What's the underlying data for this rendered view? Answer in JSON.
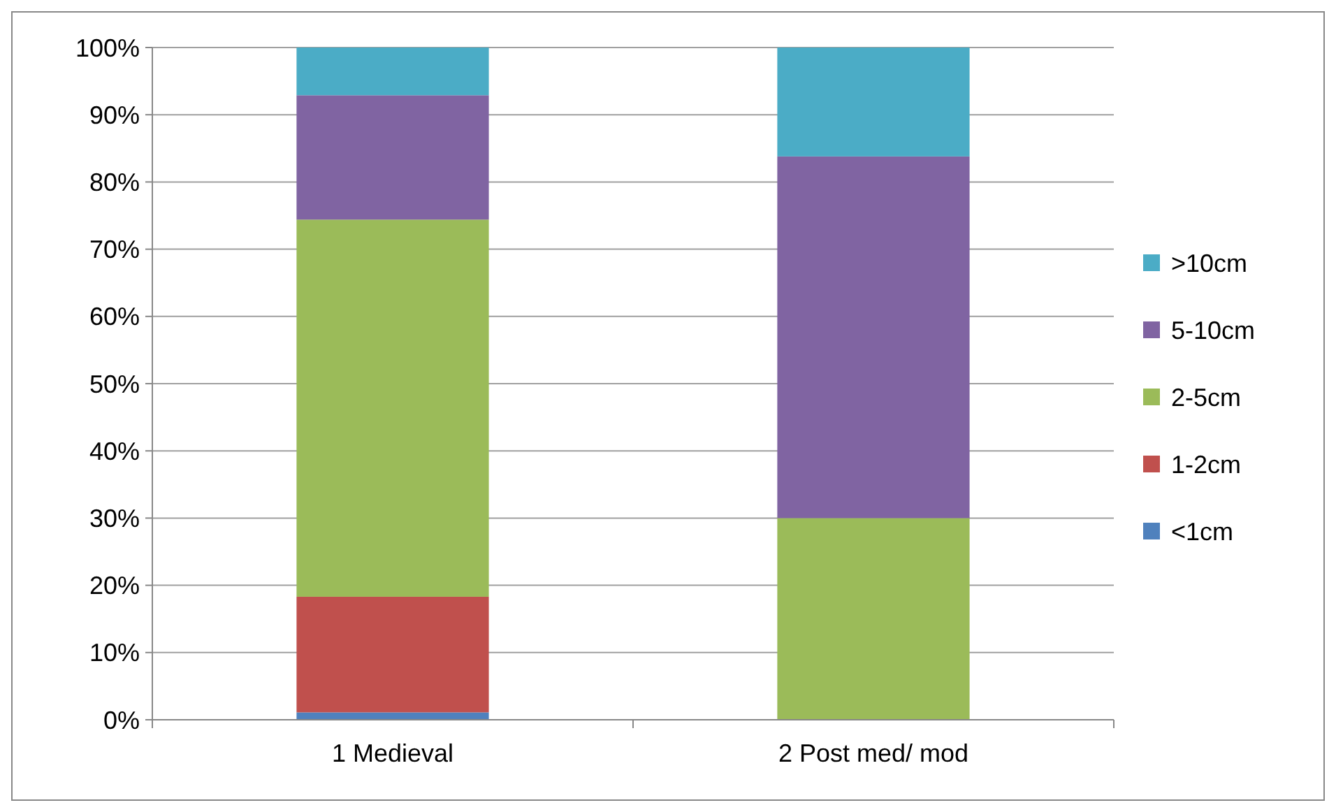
{
  "chart_data": {
    "type": "bar",
    "stacked": true,
    "categories": [
      "1 Medieval",
      "2 Post med/ mod"
    ],
    "series": [
      {
        "name": "<1cm",
        "color": "#4f81bd",
        "values": [
          1.1,
          0
        ]
      },
      {
        "name": "1-2cm",
        "color": "#c0504d",
        "values": [
          17.2,
          0
        ]
      },
      {
        "name": "2-5cm",
        "color": "#9bbb59",
        "values": [
          56.1,
          30
        ]
      },
      {
        "name": "5-10cm",
        "color": "#8064a2",
        "values": [
          18.5,
          53.8
        ]
      },
      {
        "name": ">10cm",
        "color": "#4bacc6",
        "values": [
          7.1,
          16.2
        ]
      }
    ],
    "ylim": [
      0,
      100
    ],
    "yticks": [
      {
        "value": 0,
        "label": "0%"
      },
      {
        "value": 10,
        "label": "10%"
      },
      {
        "value": 20,
        "label": "20%"
      },
      {
        "value": 30,
        "label": "30%"
      },
      {
        "value": 40,
        "label": "40%"
      },
      {
        "value": 50,
        "label": "50%"
      },
      {
        "value": 60,
        "label": "60%"
      },
      {
        "value": 70,
        "label": "70%"
      },
      {
        "value": 80,
        "label": "80%"
      },
      {
        "value": 90,
        "label": "90%"
      },
      {
        "value": 100,
        "label": "100%"
      }
    ],
    "grid": "y",
    "legend": "right"
  }
}
